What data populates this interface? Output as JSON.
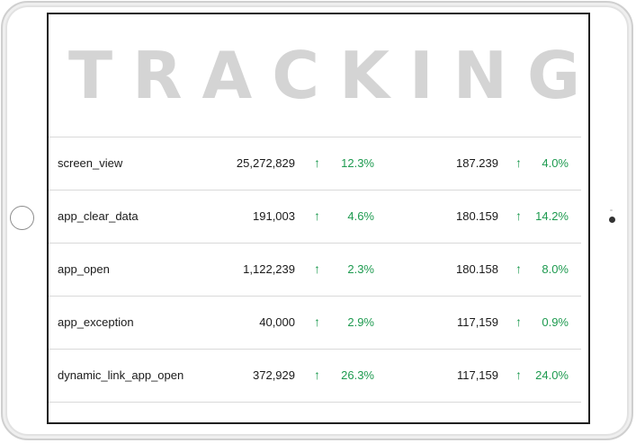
{
  "title": "TRACKING",
  "colors": {
    "positive": "#1d9a4f",
    "title": "#d4d4d4"
  },
  "rows": [
    {
      "event": "screen_view",
      "value1": "25,272,829",
      "pct1": "12.3%",
      "value2": "187.239",
      "pct2": "4.0%"
    },
    {
      "event": "app_clear_data",
      "value1": "191,003",
      "pct1": "4.6%",
      "value2": "180.159",
      "pct2": "14.2%"
    },
    {
      "event": "app_open",
      "value1": "1,122,239",
      "pct1": "2.3%",
      "value2": "180.158",
      "pct2": "8.0%"
    },
    {
      "event": "app_exception",
      "value1": "40,000",
      "pct1": "2.9%",
      "value2": "117,159",
      "pct2": "0.9%"
    },
    {
      "event": "dynamic_link_app_open",
      "value1": "372,929",
      "pct1": "26.3%",
      "value2": "117,159",
      "pct2": "24.0%"
    }
  ],
  "icons": {
    "trend": "arrow-up-icon"
  }
}
